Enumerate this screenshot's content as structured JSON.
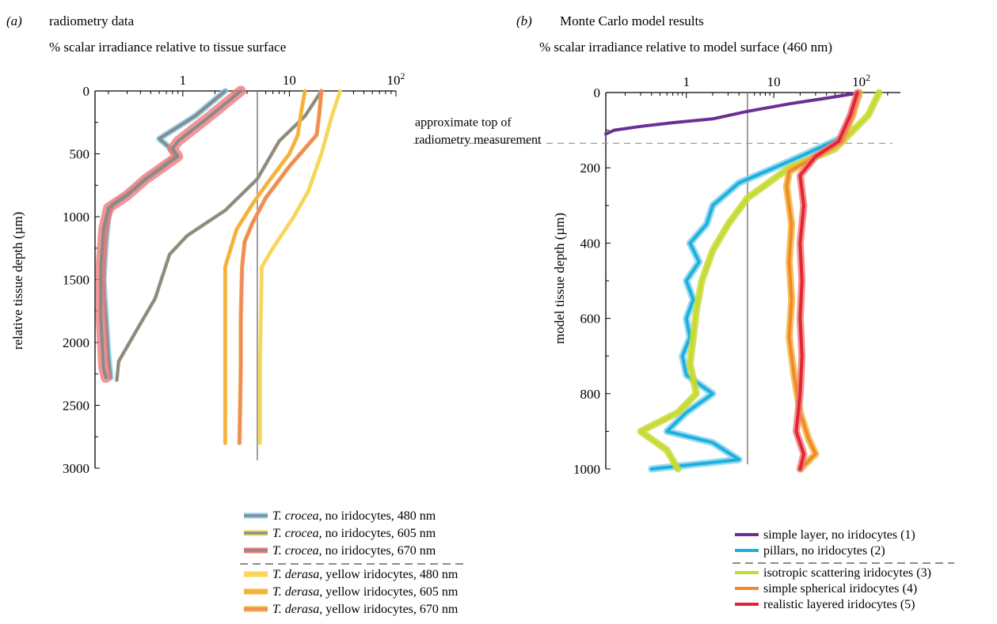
{
  "chart_data": [
    {
      "type": "line",
      "panel_label": "(a)",
      "title": "radiometry data",
      "xlabel": "% scalar irradiance relative to tissue surface",
      "ylabel": "relative tissue depth (µm)",
      "x_scale": "log",
      "x_ticks": [
        {
          "value": 1,
          "label": "1"
        },
        {
          "value": 10,
          "label": "10"
        },
        {
          "value": 100,
          "label": "10",
          "sup": "2"
        }
      ],
      "y_ticks": [
        "0",
        "500",
        "1000",
        "1500",
        "2000",
        "2500",
        "3000"
      ],
      "ylim": [
        0,
        3000
      ],
      "xlim": [
        0.15,
        100
      ],
      "reference_x": 5,
      "legend_position": "below",
      "series": [
        {
          "name": "T. crocea",
          "suffix": ", no iridocytes, 480 nm",
          "color": "#8a8a8a",
          "band_color": "#7fd0ee",
          "band_width": 0.07,
          "points": [
            [
              2.5,
              0
            ],
            [
              1.3,
              200
            ],
            [
              0.6,
              380
            ],
            [
              0.75,
              450
            ],
            [
              0.85,
              520
            ],
            [
              0.45,
              700
            ],
            [
              0.3,
              820
            ],
            [
              0.22,
              900
            ],
            [
              0.2,
              1000
            ],
            [
              0.19,
              1200
            ],
            [
              0.18,
              1500
            ],
            [
              0.19,
              1800
            ],
            [
              0.2,
              2100
            ],
            [
              0.21,
              2280
            ]
          ]
        },
        {
          "name": "T. crocea",
          "suffix": ", no iridocytes, 605 nm",
          "color": "#8a8a8a",
          "band_color": "#e8d36a",
          "band_width": 0.04,
          "points": [
            [
              20,
              0
            ],
            [
              14,
              200
            ],
            [
              8,
              400
            ],
            [
              5,
              700
            ],
            [
              2.5,
              950
            ],
            [
              1.1,
              1150
            ],
            [
              0.75,
              1300
            ],
            [
              0.55,
              1650
            ],
            [
              0.4,
              1850
            ],
            [
              0.25,
              2150
            ],
            [
              0.24,
              2300
            ]
          ]
        },
        {
          "name": "T. crocea",
          "suffix": ", no iridocytes, 670 nm",
          "color": "#8a8a8a",
          "band_color": "#f07a7a",
          "band_width": 0.12,
          "points": [
            [
              3.5,
              0
            ],
            [
              1.8,
              200
            ],
            [
              0.9,
              400
            ],
            [
              0.8,
              460
            ],
            [
              0.9,
              520
            ],
            [
              0.45,
              700
            ],
            [
              0.3,
              830
            ],
            [
              0.2,
              930
            ],
            [
              0.18,
              1100
            ],
            [
              0.17,
              1400
            ],
            [
              0.17,
              1800
            ],
            [
              0.18,
              2200
            ],
            [
              0.19,
              2280
            ]
          ]
        },
        {
          "name": "T. derasa",
          "suffix": ", yellow iridocytes, 480 nm",
          "color": "#f7d65a",
          "band_color": "#f7d65a",
          "band_width": 0.03,
          "points": [
            [
              30,
              0
            ],
            [
              25,
              200
            ],
            [
              20,
              500
            ],
            [
              15,
              800
            ],
            [
              11,
              1000
            ],
            [
              7,
              1250
            ],
            [
              5.5,
              1400
            ],
            [
              5.4,
              1800
            ],
            [
              5.3,
              2200
            ],
            [
              5.3,
              2800
            ]
          ]
        },
        {
          "name": "T. derasa",
          "suffix": ", yellow iridocytes, 605 nm",
          "color": "#f5b23a",
          "band_color": "#f5b23a",
          "band_width": 0.03,
          "points": [
            [
              14,
              0
            ],
            [
              13,
              150
            ],
            [
              12,
              350
            ],
            [
              10,
              500
            ],
            [
              6,
              750
            ],
            [
              4.5,
              900
            ],
            [
              3.2,
              1100
            ],
            [
              2.6,
              1350
            ],
            [
              2.5,
              1400
            ],
            [
              2.5,
              1800
            ],
            [
              2.5,
              2400
            ],
            [
              2.5,
              2800
            ]
          ]
        },
        {
          "name": "T. derasa",
          "suffix": ", yellow iridocytes, 670 nm",
          "color": "#f08a5c",
          "band_color": "#f5b23a",
          "band_width": 0.05,
          "points": [
            [
              20,
              0
            ],
            [
              19,
              200
            ],
            [
              18,
              350
            ],
            [
              10,
              600
            ],
            [
              6,
              850
            ],
            [
              4.5,
              1050
            ],
            [
              3.8,
              1200
            ],
            [
              3.6,
              1400
            ],
            [
              3.5,
              1800
            ],
            [
              3.5,
              2200
            ],
            [
              3.4,
              2800
            ]
          ]
        }
      ],
      "legend_group_divider_after": 2
    },
    {
      "type": "line",
      "panel_label": "(b)",
      "title": "Monte Carlo model results",
      "xlabel": "% scalar irradiance relative to model surface (460 nm)",
      "ylabel": "model tissue depth (µm)",
      "x_scale": "log",
      "x_ticks": [
        {
          "value": 1,
          "label": "1"
        },
        {
          "value": 10,
          "label": "10"
        },
        {
          "value": 100,
          "label": "10",
          "sup": "2"
        }
      ],
      "y_ticks": [
        "0",
        "200",
        "400",
        "600",
        "800",
        "1000"
      ],
      "ylim": [
        0,
        1000
      ],
      "xlim": [
        0.12,
        280
      ],
      "reference_x": 5,
      "annotation": {
        "text_lines": [
          "approximate top of",
          "radiometry measurement"
        ],
        "y": 135
      },
      "legend_position": "below",
      "series": [
        {
          "name": "simple layer, no iridocytes (1)",
          "color": "#6b2f94",
          "points": [
            [
              100,
              0
            ],
            [
              40,
              15
            ],
            [
              15,
              30
            ],
            [
              5,
              50
            ],
            [
              2,
              70
            ],
            [
              0.7,
              80
            ],
            [
              0.3,
              90
            ],
            [
              0.15,
              100
            ],
            [
              0.12,
              110
            ]
          ]
        },
        {
          "name": "pillars, no iridocytes (2)",
          "color": "#1bb1dc",
          "band_color": "#7fd0ee",
          "points": [
            [
              95,
              0
            ],
            [
              80,
              50
            ],
            [
              60,
              120
            ],
            [
              20,
              170
            ],
            [
              8,
              210
            ],
            [
              4,
              240
            ],
            [
              2,
              300
            ],
            [
              1.7,
              350
            ],
            [
              1.1,
              400
            ],
            [
              1.4,
              450
            ],
            [
              1,
              500
            ],
            [
              1.2,
              550
            ],
            [
              1,
              600
            ],
            [
              1.1,
              650
            ],
            [
              0.9,
              700
            ],
            [
              1,
              750
            ],
            [
              2,
              800
            ],
            [
              1,
              850
            ],
            [
              0.6,
              900
            ],
            [
              2,
              930
            ],
            [
              4,
              975
            ],
            [
              0.4,
              1000
            ]
          ]
        },
        {
          "name": "isotropic scattering iridocytes (3)",
          "color": "#c6da32",
          "band_color": "#c6da32",
          "points": [
            [
              160,
              0
            ],
            [
              120,
              60
            ],
            [
              50,
              150
            ],
            [
              15,
              200
            ],
            [
              5,
              280
            ],
            [
              3,
              350
            ],
            [
              2,
              420
            ],
            [
              1.5,
              500
            ],
            [
              1.3,
              580
            ],
            [
              1.2,
              650
            ],
            [
              1.1,
              720
            ],
            [
              1.3,
              800
            ],
            [
              0.8,
              850
            ],
            [
              0.3,
              900
            ],
            [
              0.6,
              950
            ],
            [
              0.8,
              1000
            ]
          ]
        },
        {
          "name": "simple spherical iridocytes (4)",
          "color": "#ef8a2b",
          "band_color": "#f5b23a",
          "points": [
            [
              95,
              0
            ],
            [
              80,
              60
            ],
            [
              60,
              130
            ],
            [
              30,
              170
            ],
            [
              15,
              210
            ],
            [
              14,
              250
            ],
            [
              16,
              350
            ],
            [
              15,
              450
            ],
            [
              16,
              550
            ],
            [
              15,
              650
            ],
            [
              17,
              750
            ],
            [
              20,
              850
            ],
            [
              25,
              920
            ],
            [
              30,
              960
            ],
            [
              20,
              1000
            ]
          ]
        },
        {
          "name": "realistic layered iridocytes (5)",
          "color": "#e3262f",
          "band_color": "#f07a7a",
          "points": [
            [
              90,
              0
            ],
            [
              75,
              60
            ],
            [
              55,
              130
            ],
            [
              30,
              170
            ],
            [
              20,
              220
            ],
            [
              22,
              300
            ],
            [
              20,
              400
            ],
            [
              21,
              500
            ],
            [
              20,
              600
            ],
            [
              21,
              700
            ],
            [
              20,
              800
            ],
            [
              18,
              900
            ],
            [
              22,
              960
            ],
            [
              20,
              1000
            ]
          ]
        }
      ],
      "legend_group_divider_after": 1
    }
  ]
}
